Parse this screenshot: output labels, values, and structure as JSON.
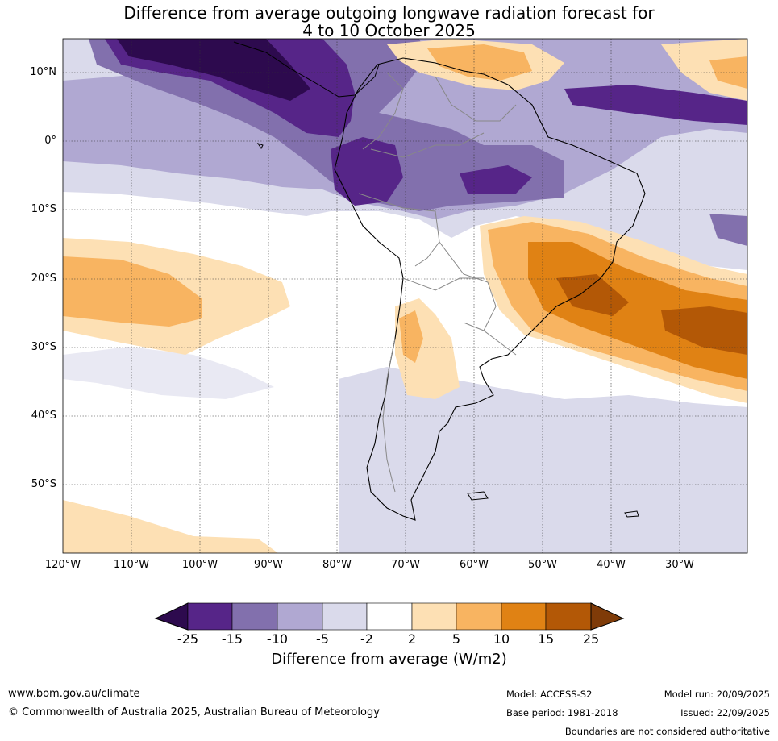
{
  "title": {
    "line1": "Difference from average outgoing longwave radiation forecast for",
    "line2": "4 to 10 October 2025"
  },
  "map": {
    "lat_labels": [
      "10°N",
      "0°",
      "10°S",
      "20°S",
      "30°S",
      "40°S",
      "50°S"
    ],
    "lon_labels": [
      "120°W",
      "110°W",
      "100°W",
      "90°W",
      "80°W",
      "70°W",
      "60°W",
      "50°W",
      "40°W",
      "30°W"
    ]
  },
  "colorbar": {
    "title": "Difference from average (W/m2)",
    "ticks": [
      "-25",
      "-15",
      "-10",
      "-5",
      "-2",
      "2",
      "5",
      "10",
      "15",
      "25"
    ],
    "colors": [
      "#2d0a4e",
      "#562588",
      "#8270ad",
      "#b0a8d2",
      "#dadaeb",
      "#ffffff",
      "#fde0b4",
      "#f8b461",
      "#e08214",
      "#b35806",
      "#7f3b08"
    ]
  },
  "footer": {
    "url": "www.bom.gov.au/climate",
    "copyright": "© Commonwealth of Australia 2025, Australian Bureau of Meteorology",
    "model": "Model: ACCESS-S2",
    "base_period": "Base period: 1981-2018",
    "model_run": "Model run: 20/09/2025",
    "issued": "Issued: 22/09/2025",
    "disclaimer": "Boundaries are not considered authoritative"
  }
}
